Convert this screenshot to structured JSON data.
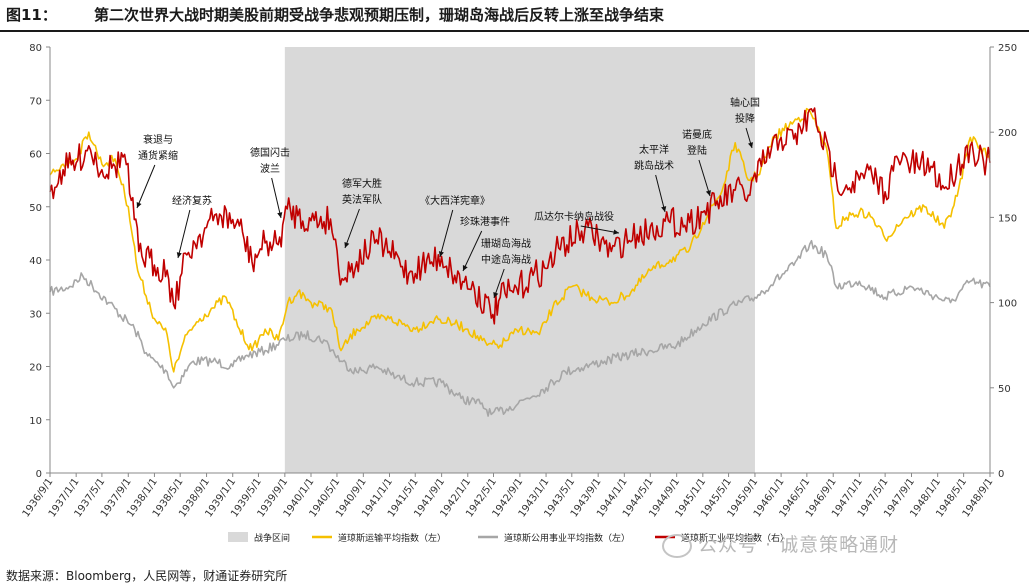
{
  "figure": {
    "number": "图11：",
    "title": "第二次世界大战时期美股前期受战争悲观预期压制，珊瑚岛海战后反转上涨至战争结束",
    "source": "数据来源：Bloomberg，人民网等，财通证券研究所",
    "watermark": "公众号 · 诚意策略通财"
  },
  "chart_data": {
    "type": "line",
    "title": "第二次世界大战时期美股前期受战争悲观预期压制，珊瑚岛海战后反转上涨至战争结束",
    "y_left": {
      "min": 0,
      "max": 80,
      "ticks": [
        0,
        10,
        20,
        30,
        40,
        50,
        60,
        70,
        80
      ]
    },
    "y_right": {
      "min": 0,
      "max": 250,
      "ticks": [
        0,
        50,
        100,
        150,
        200,
        250
      ]
    },
    "x_range": [
      "1936-09-01",
      "1948-09-01"
    ],
    "x_ticks": [
      "1936/9/1",
      "1937/1/1",
      "1937/5/1",
      "1937/9/1",
      "1938/1/1",
      "1938/5/1",
      "1938/9/1",
      "1939/1/1",
      "1939/5/1",
      "1939/9/1",
      "1940/1/1",
      "1940/5/1",
      "1940/9/1",
      "1941/1/1",
      "1941/5/1",
      "1941/9/1",
      "1942/1/1",
      "1942/5/1",
      "1942/9/1",
      "1943/1/1",
      "1943/5/1",
      "1943/9/1",
      "1944/1/1",
      "1944/5/1",
      "1944/9/1",
      "1945/1/1",
      "1945/5/1",
      "1945/9/1",
      "1946/1/1",
      "1946/5/1",
      "1946/9/1",
      "1947/1/1",
      "1947/5/1",
      "1947/9/1",
      "1948/1/1",
      "1948/5/1",
      "1948/9/1"
    ],
    "war_period": {
      "name": "战争区间",
      "start": "1939-09-01",
      "end": "1945-09-01",
      "color": "#d9d9d9"
    },
    "series": [
      {
        "name": "道琼斯运输平均指数（左）",
        "axis": "left",
        "color": "#f5c000",
        "points": [
          [
            "1936-09-01",
            56
          ],
          [
            "1936-11-01",
            58
          ],
          [
            "1937-01-01",
            59
          ],
          [
            "1937-03-01",
            64
          ],
          [
            "1937-05-01",
            58
          ],
          [
            "1937-07-01",
            59
          ],
          [
            "1937-09-01",
            50
          ],
          [
            "1937-10-15",
            38
          ],
          [
            "1938-01-01",
            29
          ],
          [
            "1938-03-01",
            26
          ],
          [
            "1938-04-01",
            19
          ],
          [
            "1938-06-01",
            26
          ],
          [
            "1938-08-01",
            29
          ],
          [
            "1938-10-01",
            31
          ],
          [
            "1938-12-01",
            33
          ],
          [
            "1939-02-01",
            27
          ],
          [
            "1939-04-01",
            23
          ],
          [
            "1939-06-01",
            27
          ],
          [
            "1939-08-01",
            25
          ],
          [
            "1939-09-15",
            32
          ],
          [
            "1939-11-01",
            34
          ],
          [
            "1940-01-01",
            32
          ],
          [
            "1940-04-01",
            31
          ],
          [
            "1940-05-20",
            23
          ],
          [
            "1940-08-01",
            27
          ],
          [
            "1940-11-01",
            29
          ],
          [
            "1941-01-01",
            29
          ],
          [
            "1941-05-01",
            27
          ],
          [
            "1941-08-01",
            29
          ],
          [
            "1941-11-01",
            28
          ],
          [
            "1942-01-01",
            27
          ],
          [
            "1942-04-01",
            24
          ],
          [
            "1942-06-01",
            24
          ],
          [
            "1942-09-01",
            27
          ],
          [
            "1942-12-01",
            26
          ],
          [
            "1943-02-01",
            31
          ],
          [
            "1943-05-01",
            35
          ],
          [
            "1943-08-01",
            33
          ],
          [
            "1943-11-01",
            32
          ],
          [
            "1944-02-01",
            34
          ],
          [
            "1944-05-01",
            38
          ],
          [
            "1944-08-01",
            40
          ],
          [
            "1944-11-01",
            42
          ],
          [
            "1945-01-01",
            47
          ],
          [
            "1945-04-01",
            53
          ],
          [
            "1945-06-01",
            62
          ],
          [
            "1945-08-01",
            55
          ],
          [
            "1945-09-15",
            56
          ],
          [
            "1945-12-01",
            63
          ],
          [
            "1946-03-01",
            66
          ],
          [
            "1946-05-15",
            68
          ],
          [
            "1946-08-01",
            61
          ],
          [
            "1946-09-15",
            46
          ],
          [
            "1946-11-01",
            48
          ],
          [
            "1947-01-01",
            49
          ],
          [
            "1947-03-01",
            48
          ],
          [
            "1947-05-01",
            44
          ],
          [
            "1947-08-01",
            48
          ],
          [
            "1947-11-01",
            50
          ],
          [
            "1948-02-01",
            46
          ],
          [
            "1948-04-01",
            52
          ],
          [
            "1948-06-01",
            63
          ],
          [
            "1948-07-01",
            62
          ],
          [
            "1948-09-01",
            59
          ]
        ]
      },
      {
        "name": "道琼斯公用事业平均指数（左）",
        "axis": "left",
        "color": "#a6a6a6",
        "points": [
          [
            "1936-09-01",
            34
          ],
          [
            "1936-12-01",
            35
          ],
          [
            "1937-02-01",
            37
          ],
          [
            "1937-06-01",
            32
          ],
          [
            "1937-10-01",
            27
          ],
          [
            "1937-12-01",
            22
          ],
          [
            "1938-03-01",
            19
          ],
          [
            "1938-04-01",
            16
          ],
          [
            "1938-07-01",
            21
          ],
          [
            "1938-10-01",
            21
          ],
          [
            "1939-01-01",
            20
          ],
          [
            "1939-03-01",
            22
          ],
          [
            "1939-06-01",
            23
          ],
          [
            "1939-09-01",
            25
          ],
          [
            "1939-12-01",
            26
          ],
          [
            "1940-03-01",
            25
          ],
          [
            "1940-05-20",
            21
          ],
          [
            "1940-08-01",
            19
          ],
          [
            "1940-11-01",
            20
          ],
          [
            "1941-02-01",
            18
          ],
          [
            "1941-05-01",
            17
          ],
          [
            "1941-09-01",
            17
          ],
          [
            "1941-12-01",
            14
          ],
          [
            "1942-03-01",
            13
          ],
          [
            "1942-04-20",
            11
          ],
          [
            "1942-07-01",
            12
          ],
          [
            "1942-10-01",
            14
          ],
          [
            "1943-01-01",
            16
          ],
          [
            "1943-04-01",
            19
          ],
          [
            "1943-07-01",
            20
          ],
          [
            "1943-10-01",
            21
          ],
          [
            "1944-01-01",
            22
          ],
          [
            "1944-05-01",
            23
          ],
          [
            "1944-09-01",
            24
          ],
          [
            "1945-01-01",
            28
          ],
          [
            "1945-05-01",
            31
          ],
          [
            "1945-09-01",
            33
          ],
          [
            "1945-12-01",
            36
          ],
          [
            "1946-03-01",
            39
          ],
          [
            "1946-05-15",
            43
          ],
          [
            "1946-08-01",
            41
          ],
          [
            "1946-09-15",
            35
          ],
          [
            "1947-01-01",
            36
          ],
          [
            "1947-05-01",
            33
          ],
          [
            "1947-09-01",
            35
          ],
          [
            "1948-01-01",
            33
          ],
          [
            "1948-03-01",
            32
          ],
          [
            "1948-06-01",
            36
          ],
          [
            "1948-09-01",
            35
          ]
        ]
      },
      {
        "name": "道琼斯工业平均指数（右）",
        "axis": "right",
        "color": "#c00000",
        "points": [
          [
            "1936-09-01",
            165
          ],
          [
            "1936-11-01",
            178
          ],
          [
            "1937-01-01",
            182
          ],
          [
            "1937-03-01",
            192
          ],
          [
            "1937-05-01",
            178
          ],
          [
            "1937-07-01",
            180
          ],
          [
            "1937-08-15",
            187
          ],
          [
            "1937-09-15",
            160
          ],
          [
            "1937-10-20",
            130
          ],
          [
            "1938-01-01",
            122
          ],
          [
            "1938-03-01",
            119
          ],
          [
            "1938-03-31",
            99
          ],
          [
            "1938-06-01",
            128
          ],
          [
            "1938-08-01",
            140
          ],
          [
            "1938-11-01",
            152
          ],
          [
            "1939-02-01",
            145
          ],
          [
            "1939-04-01",
            124
          ],
          [
            "1939-06-01",
            135
          ],
          [
            "1939-08-01",
            134
          ],
          [
            "1939-09-12",
            155
          ],
          [
            "1939-11-01",
            151
          ],
          [
            "1940-01-01",
            148
          ],
          [
            "1940-04-01",
            149
          ],
          [
            "1940-05-25",
            114
          ],
          [
            "1940-08-01",
            124
          ],
          [
            "1940-11-01",
            137
          ],
          [
            "1941-01-01",
            130
          ],
          [
            "1941-04-01",
            117
          ],
          [
            "1941-06-01",
            122
          ],
          [
            "1941-09-01",
            127
          ],
          [
            "1941-11-01",
            116
          ],
          [
            "1941-12-15",
            112
          ],
          [
            "1942-02-01",
            108
          ],
          [
            "1942-04-28",
            93
          ],
          [
            "1942-06-01",
            103
          ],
          [
            "1942-08-01",
            106
          ],
          [
            "1942-11-01",
            116
          ],
          [
            "1943-01-01",
            120
          ],
          [
            "1943-03-01",
            132
          ],
          [
            "1943-07-01",
            143
          ],
          [
            "1943-09-01",
            138
          ],
          [
            "1943-11-01",
            130
          ],
          [
            "1944-01-01",
            136
          ],
          [
            "1944-03-01",
            140
          ],
          [
            "1944-06-01",
            145
          ],
          [
            "1944-08-01",
            147
          ],
          [
            "1944-11-01",
            147
          ],
          [
            "1945-01-01",
            153
          ],
          [
            "1945-03-01",
            157
          ],
          [
            "1945-06-01",
            166
          ],
          [
            "1945-08-01",
            163
          ],
          [
            "1945-10-01",
            180
          ],
          [
            "1946-01-01",
            197
          ],
          [
            "1946-03-01",
            196
          ],
          [
            "1946-05-29",
            212
          ],
          [
            "1946-07-01",
            200
          ],
          [
            "1946-09-15",
            173
          ],
          [
            "1946-11-01",
            169
          ],
          [
            "1947-01-01",
            172
          ],
          [
            "1947-03-01",
            175
          ],
          [
            "1947-05-01",
            165
          ],
          [
            "1947-07-01",
            184
          ],
          [
            "1947-10-01",
            180
          ],
          [
            "1947-12-01",
            180
          ],
          [
            "1948-02-01",
            167
          ],
          [
            "1948-04-01",
            180
          ],
          [
            "1948-06-01",
            192
          ],
          [
            "1948-08-01",
            183
          ],
          [
            "1948-09-01",
            182
          ]
        ]
      }
    ],
    "annotations": [
      {
        "lines": [
          "衰退与",
          "通货紧缩"
        ],
        "date": "1937-10-01",
        "value": 52
      },
      {
        "lines": [
          "经济复苏"
        ],
        "date": "1938-05-01",
        "value": 40
      },
      {
        "lines": [
          "德国闪击",
          "波兰"
        ],
        "date": "1939-09-01",
        "value": 48
      },
      {
        "lines": [
          "德军大胜",
          "英法军队"
        ],
        "date": "1940-05-20",
        "value": 42
      },
      {
        "lines": [
          "《大西洋宪章》"
        ],
        "date": "1941-08-14",
        "value": 41
      },
      {
        "lines": [
          "珍珠港事件"
        ],
        "date": "1941-12-07",
        "value": 38
      },
      {
        "lines": [
          "珊瑚岛海战",
          "中途岛海战"
        ],
        "date": "1942-05-01",
        "value": 32
      },
      {
        "lines": [
          "瓜达尔卡纳岛战役"
        ],
        "date": "1943-02-01",
        "value": 43
      },
      {
        "lines": [
          "太平洋",
          "跳岛战术"
        ],
        "date": "1944-03-01",
        "value": 49
      },
      {
        "lines": [
          "诺曼底",
          "登陆"
        ],
        "date": "1944-06-06",
        "value": 52
      },
      {
        "lines": [
          "轴心国",
          "投降"
        ],
        "date": "1945-09-01",
        "value": 58
      }
    ],
    "legend": {
      "position": "bottom",
      "items": [
        "战争区间",
        "道琼斯运输平均指数（左）",
        "道琼斯公用事业平均指数（左）",
        "道琼斯工业平均指数（右）"
      ]
    }
  }
}
